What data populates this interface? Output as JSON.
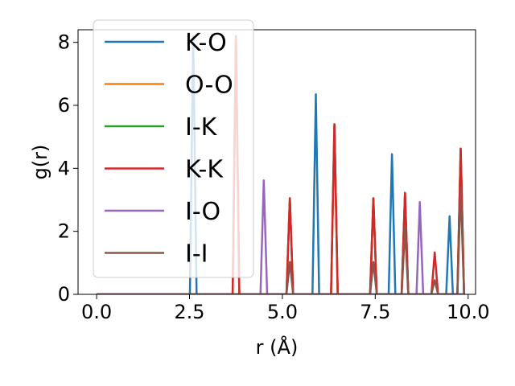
{
  "chart_data": {
    "type": "line",
    "xlabel": "r (Å)",
    "ylabel": "g(r)",
    "xlim": [
      -0.5,
      10.2
    ],
    "ylim": [
      0,
      8.4
    ],
    "xticks": [
      0.0,
      2.5,
      5.0,
      7.5,
      10.0
    ],
    "xtick_labels": [
      "0.0",
      "2.5",
      "5.0",
      "7.5",
      "10.0"
    ],
    "yticks": [
      0,
      2,
      4,
      6,
      8
    ],
    "ytick_labels": [
      "0",
      "2",
      "4",
      "6",
      "8"
    ],
    "grid": false,
    "legend_position": "top-left",
    "x_range": [
      0.0,
      9.9
    ],
    "series": [
      {
        "name": "K-O",
        "color": "#1f77b4",
        "peaks": [
          [
            2.6,
            8.2
          ],
          [
            5.9,
            6.35
          ],
          [
            7.95,
            4.45
          ],
          [
            9.5,
            2.48
          ]
        ]
      },
      {
        "name": "O-O",
        "color": "#ff7f0e",
        "peaks": [
          [
            3.75,
            8.2
          ],
          [
            5.2,
            3.05
          ],
          [
            6.4,
            5.4
          ],
          [
            7.45,
            3.05
          ],
          [
            8.3,
            3.22
          ],
          [
            9.8,
            4.63
          ]
        ]
      },
      {
        "name": "I-K",
        "color": "#2ca02c",
        "peaks": [
          [
            3.75,
            8.2
          ],
          [
            5.2,
            3.05
          ],
          [
            6.4,
            5.4
          ],
          [
            7.45,
            3.05
          ],
          [
            8.3,
            3.22
          ],
          [
            9.8,
            4.63
          ]
        ]
      },
      {
        "name": "K-K",
        "color": "#d62728",
        "peaks": [
          [
            3.75,
            8.2
          ],
          [
            5.2,
            3.05
          ],
          [
            6.4,
            5.4
          ],
          [
            7.45,
            3.05
          ],
          [
            8.3,
            3.22
          ],
          [
            9.1,
            1.33
          ],
          [
            9.8,
            4.63
          ]
        ]
      },
      {
        "name": "I-O",
        "color": "#9467bd",
        "peaks": [
          [
            4.5,
            3.62
          ],
          [
            8.7,
            2.93
          ]
        ]
      },
      {
        "name": "I-I",
        "color": "#8c564b",
        "peaks": [
          [
            5.2,
            1.03
          ],
          [
            7.45,
            1.03
          ],
          [
            8.3,
            2.1
          ],
          [
            9.1,
            0.45
          ],
          [
            9.8,
            3.4
          ]
        ]
      }
    ]
  }
}
